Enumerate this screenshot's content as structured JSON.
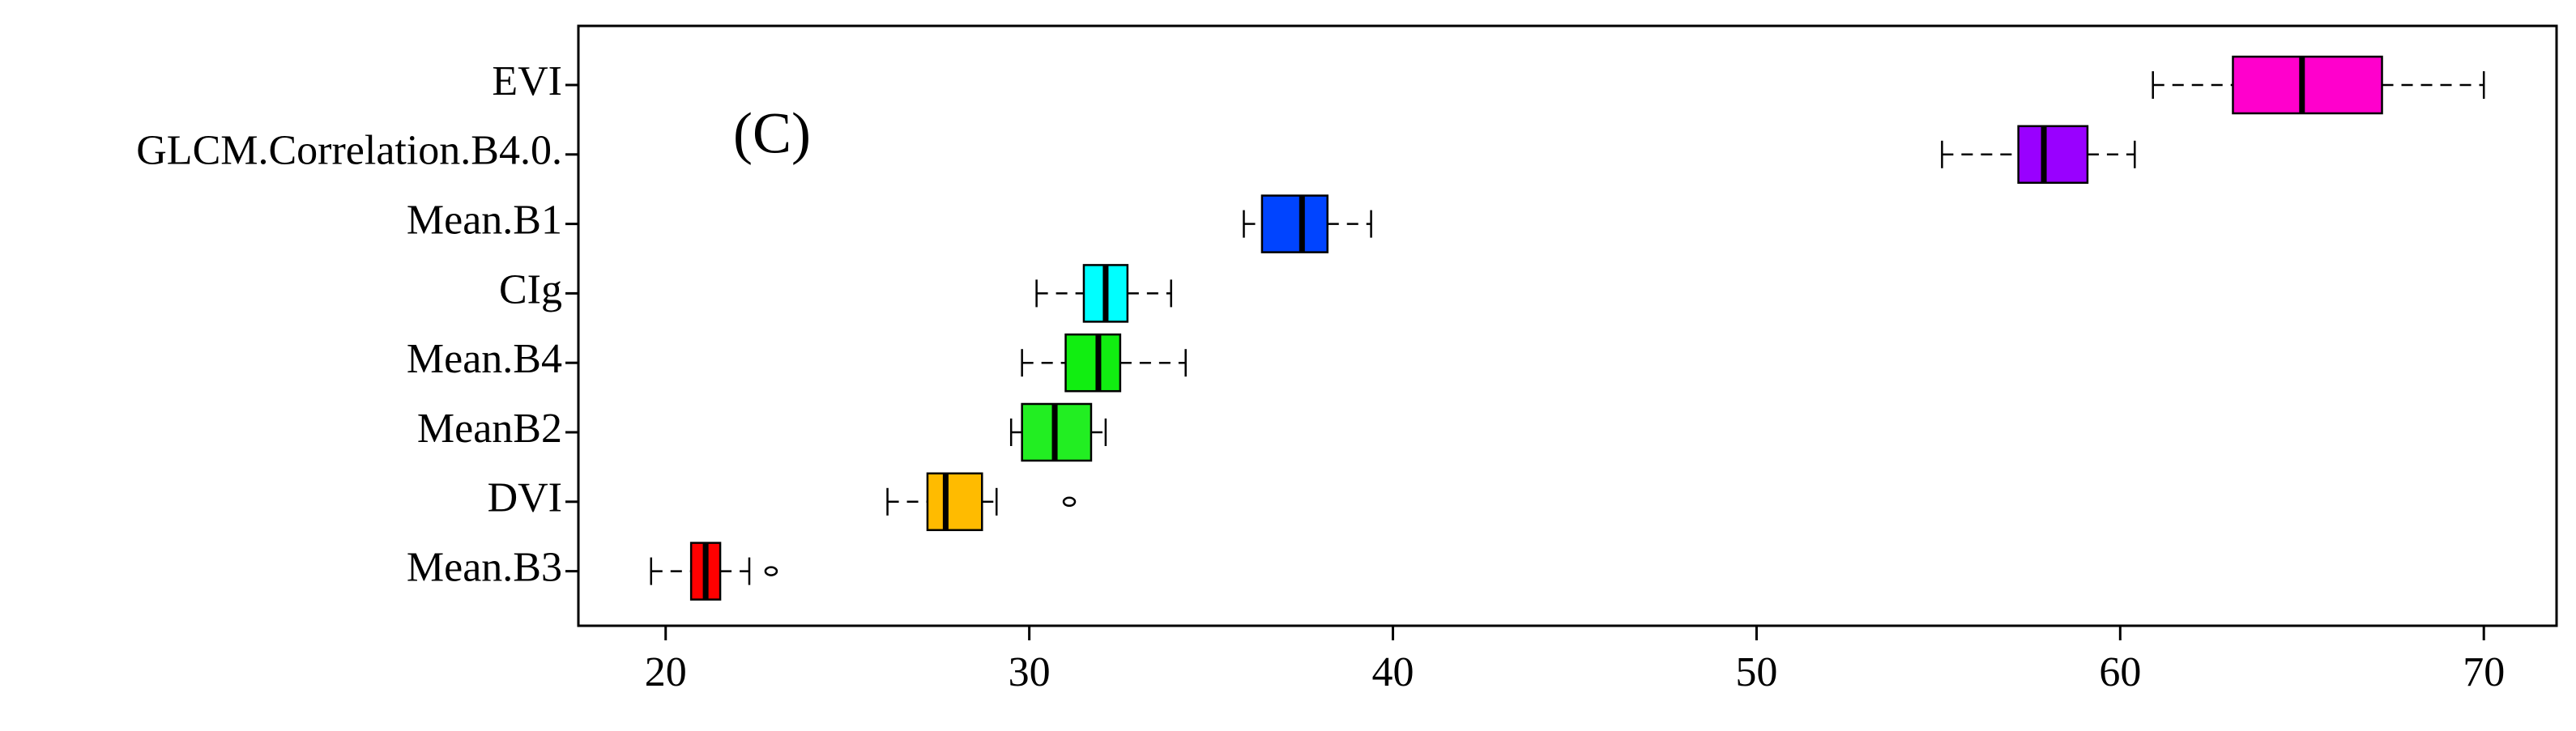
{
  "chart_data": {
    "type": "boxplot",
    "annotation": "(C)",
    "categories": [
      "EVI",
      "GLCM.Correlation.B4.0.",
      "Mean.B1",
      "CIg",
      "Mean.B4",
      "MeanB2",
      "DVI",
      "Mean.B3"
    ],
    "min": [
      60.9,
      55.1,
      35.9,
      30.2,
      29.8,
      29.5,
      26.1,
      19.6
    ],
    "q1": [
      63.1,
      57.2,
      36.4,
      31.5,
      31.0,
      29.8,
      27.2,
      20.7
    ],
    "median": [
      65.0,
      57.9,
      37.5,
      32.1,
      31.9,
      30.7,
      27.7,
      21.1
    ],
    "q3": [
      67.2,
      59.1,
      38.2,
      32.7,
      32.5,
      31.7,
      28.7,
      21.5
    ],
    "max": [
      70.0,
      60.4,
      39.4,
      33.9,
      34.3,
      32.1,
      29.1,
      22.3
    ],
    "outliers": [
      [],
      [],
      [],
      [],
      [],
      [],
      [
        31.1
      ],
      [
        22.9
      ]
    ],
    "colors": [
      "#ff00cc",
      "#9900ff",
      "#0044ff",
      "#00ffff",
      "#11ee11",
      "#22ee22",
      "#ffbb00",
      "#ff0000"
    ],
    "xlim": [
      17.6,
      72.0
    ],
    "xticks": [
      20,
      30,
      40,
      50,
      60,
      70
    ]
  }
}
